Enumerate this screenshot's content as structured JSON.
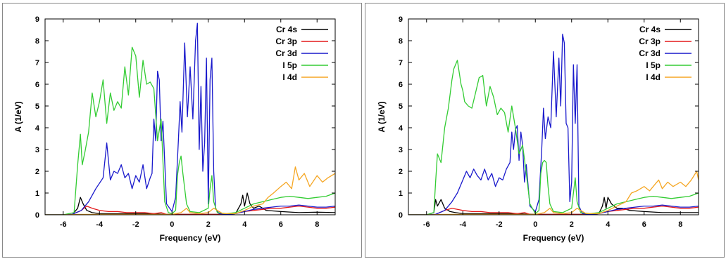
{
  "chart_data": [
    {
      "type": "line",
      "xlabel": "Frequency (eV)",
      "ylabel": "A (1/eV)",
      "xlim": [
        -7,
        9
      ],
      "ylim": [
        0,
        9
      ],
      "xticks": [
        "-6",
        "-4",
        "-2",
        "0",
        "2",
        "4",
        "6",
        "8"
      ],
      "yticks": [
        "0",
        "1",
        "2",
        "3",
        "4",
        "5",
        "6",
        "7",
        "8",
        "9"
      ],
      "grid": false,
      "legend_position": "top-right",
      "series": [
        {
          "name": "Cr 4s",
          "color": "#000000",
          "x": [
            -7,
            -6,
            -5.5,
            -5.2,
            -5.05,
            -4.9,
            -4.7,
            -4.4,
            -4,
            -3,
            -2,
            -1,
            -0.5,
            0,
            0.5,
            1,
            1.5,
            2,
            2.5,
            3,
            3.5,
            3.8,
            3.9,
            4.0,
            4.15,
            4.3,
            4.5,
            4.8,
            5.2,
            6,
            7,
            8,
            9
          ],
          "y": [
            0,
            0,
            0,
            0.3,
            0.8,
            0.5,
            0.2,
            0.1,
            0.05,
            0.05,
            0.05,
            0.05,
            0.03,
            0.02,
            0.02,
            0.02,
            0.02,
            0.02,
            0.02,
            0.02,
            0.05,
            0.5,
            0.9,
            0.4,
            1.0,
            0.5,
            0.3,
            0.4,
            0.2,
            0.15,
            0.1,
            0.12,
            0.1
          ]
        },
        {
          "name": "Cr 3p",
          "color": "#e41a1c",
          "x": [
            -7,
            -6,
            -5.5,
            -5.0,
            -4.7,
            -4.4,
            -4.0,
            -3.5,
            -3,
            -2.5,
            -2,
            -1.5,
            -1,
            -0.6,
            -0.3,
            0,
            0.5,
            1,
            1.5,
            2,
            2.5,
            3,
            3.5,
            4,
            4.5,
            5,
            5.5,
            6,
            6.5,
            7,
            7.5,
            8,
            8.5,
            9
          ],
          "y": [
            0,
            0,
            0.02,
            0.2,
            0.4,
            0.3,
            0.2,
            0.15,
            0.15,
            0.1,
            0.1,
            0.1,
            0.05,
            0.1,
            0.02,
            0.01,
            0.02,
            0.02,
            0.02,
            0.02,
            0.02,
            0.02,
            0.05,
            0.15,
            0.2,
            0.25,
            0.3,
            0.3,
            0.35,
            0.4,
            0.35,
            0.3,
            0.3,
            0.35
          ]
        },
        {
          "name": "Cr 3d",
          "color": "#1a1acc",
          "x": [
            -7,
            -6,
            -5.5,
            -5.0,
            -4.6,
            -4.2,
            -3.8,
            -3.6,
            -3.4,
            -3.2,
            -3.0,
            -2.8,
            -2.6,
            -2.4,
            -2.2,
            -2.0,
            -1.8,
            -1.6,
            -1.4,
            -1.2,
            -1.1,
            -1.0,
            -0.9,
            -0.8,
            -0.7,
            -0.6,
            -0.5,
            -0.3,
            0,
            0.2,
            0.35,
            0.45,
            0.55,
            0.7,
            0.85,
            1.0,
            1.15,
            1.3,
            1.4,
            1.5,
            1.6,
            1.7,
            1.8,
            1.9,
            2.0,
            2.1,
            2.2,
            2.3,
            2.4,
            2.6,
            3.0,
            3.5,
            4,
            4.5,
            5,
            5.5,
            6,
            6.5,
            7,
            7.5,
            8,
            8.5,
            9
          ],
          "y": [
            0,
            0,
            0.02,
            0.2,
            0.6,
            1.2,
            1.7,
            3.3,
            1.6,
            2.0,
            1.9,
            2.3,
            1.7,
            1.9,
            1.2,
            1.8,
            1.5,
            2.3,
            1.2,
            1.7,
            1.9,
            4.4,
            3.4,
            6.6,
            6.2,
            3.4,
            4.3,
            0.5,
            0.15,
            0.8,
            3.4,
            5.2,
            3.8,
            7.9,
            4.5,
            6.8,
            4.4,
            8.0,
            8.8,
            3.0,
            5.9,
            2.0,
            3.3,
            7.2,
            0.5,
            6.2,
            7.2,
            2.0,
            0.3,
            0.05,
            0.02,
            0.05,
            0.15,
            0.25,
            0.3,
            0.35,
            0.4,
            0.4,
            0.45,
            0.4,
            0.35,
            0.35,
            0.4
          ]
        },
        {
          "name": "I 5p",
          "color": "#33cc33",
          "x": [
            -7,
            -6,
            -5.4,
            -5.2,
            -5.05,
            -4.95,
            -4.8,
            -4.6,
            -4.4,
            -4.2,
            -4.0,
            -3.8,
            -3.6,
            -3.4,
            -3.2,
            -3.0,
            -2.8,
            -2.6,
            -2.4,
            -2.2,
            -2.0,
            -1.8,
            -1.6,
            -1.4,
            -1.2,
            -1.0,
            -0.8,
            -0.6,
            -0.4,
            -0.2,
            0,
            0.2,
            0.3,
            0.4,
            0.5,
            0.6,
            0.7,
            0.8,
            1.0,
            1.5,
            2.0,
            2.1,
            2.2,
            2.3,
            2.5,
            3,
            3.5,
            4,
            4.5,
            5,
            5.5,
            6,
            6.5,
            7,
            7.5,
            8,
            8.5,
            9
          ],
          "y": [
            0,
            0,
            0.1,
            2.3,
            3.7,
            2.3,
            2.9,
            3.8,
            5.6,
            4.5,
            5.2,
            6.2,
            4.2,
            5.6,
            4.8,
            5.2,
            4.9,
            6.8,
            5.5,
            7.7,
            7.3,
            5.4,
            7.1,
            6.0,
            6.1,
            5.8,
            3.4,
            4.4,
            0.6,
            0.1,
            0.05,
            0.2,
            1.8,
            2.4,
            2.7,
            1.9,
            1.2,
            0.5,
            0.15,
            0.1,
            0.3,
            1.2,
            1.8,
            0.6,
            0.1,
            0.05,
            0.1,
            0.3,
            0.5,
            0.6,
            0.7,
            0.8,
            0.85,
            0.8,
            0.75,
            0.8,
            0.85,
            1.0
          ]
        },
        {
          "name": "I 4d",
          "color": "#f5a623",
          "x": [
            -7,
            -6,
            -5,
            -4,
            -3,
            -2,
            -1,
            -0.5,
            0,
            0.5,
            0.8,
            1.0,
            1.5,
            2.0,
            2.3,
            2.8,
            3.5,
            4,
            4.5,
            5,
            5.3,
            5.6,
            6,
            6.3,
            6.6,
            6.8,
            7,
            7.3,
            7.6,
            8,
            8.3,
            8.6,
            9
          ],
          "y": [
            0,
            0,
            0.02,
            0.02,
            0.02,
            0.02,
            0.02,
            0.02,
            0.02,
            0.1,
            0.3,
            0.1,
            0.05,
            0.1,
            0.3,
            0.05,
            0.05,
            0.2,
            0.4,
            0.5,
            0.8,
            1.0,
            1.3,
            1.5,
            1.2,
            2.2,
            1.6,
            1.9,
            1.3,
            1.8,
            1.5,
            1.7,
            1.9
          ]
        }
      ]
    },
    {
      "type": "line",
      "xlabel": "Frequency (eV)",
      "ylabel": "A (1/eV)",
      "xlim": [
        -7,
        9
      ],
      "ylim": [
        0,
        9
      ],
      "xticks": [
        "-6",
        "-4",
        "-2",
        "0",
        "2",
        "4",
        "6",
        "8"
      ],
      "yticks": [
        "0",
        "1",
        "2",
        "3",
        "4",
        "5",
        "6",
        "7",
        "8",
        "9"
      ],
      "grid": false,
      "legend_position": "top-right",
      "series": [
        {
          "name": "Cr 4s",
          "color": "#000000",
          "x": [
            -7,
            -6,
            -5.6,
            -5.5,
            -5.4,
            -5.2,
            -5.0,
            -4.7,
            -4.4,
            -4,
            -3,
            -2,
            -1,
            0,
            1,
            2,
            3,
            3.5,
            3.7,
            3.8,
            3.9,
            4.0,
            4.2,
            4.5,
            4.8,
            5.2,
            6,
            7,
            8,
            9
          ],
          "y": [
            0,
            0,
            0.1,
            0.7,
            0.4,
            0.7,
            0.3,
            0.15,
            0.1,
            0.05,
            0.05,
            0.05,
            0.05,
            0.02,
            0.02,
            0.02,
            0.02,
            0.05,
            0.4,
            0.8,
            0.3,
            0.8,
            0.5,
            0.3,
            0.3,
            0.2,
            0.15,
            0.1,
            0.1,
            0.1
          ]
        },
        {
          "name": "Cr 3p",
          "color": "#e41a1c",
          "x": [
            -7,
            -6,
            -5.5,
            -5.0,
            -4.6,
            -4.3,
            -4.0,
            -3.5,
            -3,
            -2.5,
            -2,
            -1.5,
            -1,
            -0.6,
            -0.3,
            0,
            0.5,
            1,
            1.5,
            2,
            2.5,
            3,
            3.5,
            4,
            4.5,
            5,
            5.5,
            6,
            6.5,
            7,
            7.5,
            8,
            8.5,
            9
          ],
          "y": [
            0,
            0,
            0.02,
            0.2,
            0.3,
            0.25,
            0.2,
            0.15,
            0.15,
            0.1,
            0.1,
            0.1,
            0.05,
            0.1,
            0.02,
            0.01,
            0.02,
            0.02,
            0.02,
            0.02,
            0.02,
            0.02,
            0.05,
            0.15,
            0.2,
            0.25,
            0.3,
            0.3,
            0.35,
            0.4,
            0.35,
            0.3,
            0.3,
            0.35
          ]
        },
        {
          "name": "Cr 3d",
          "color": "#1a1acc",
          "x": [
            -7,
            -6,
            -5.5,
            -5.0,
            -4.6,
            -4.3,
            -4.0,
            -3.8,
            -3.6,
            -3.4,
            -3.2,
            -3.0,
            -2.8,
            -2.6,
            -2.4,
            -2.2,
            -2.0,
            -1.8,
            -1.6,
            -1.4,
            -1.3,
            -1.2,
            -1.1,
            -1.0,
            -0.9,
            -0.8,
            -0.7,
            -0.6,
            -0.5,
            -0.3,
            0,
            0.2,
            0.35,
            0.45,
            0.55,
            0.7,
            0.85,
            1.0,
            1.15,
            1.3,
            1.4,
            1.5,
            1.6,
            1.7,
            1.8,
            1.9,
            2.0,
            2.1,
            2.2,
            2.3,
            2.4,
            2.6,
            3.0,
            3.5,
            4,
            4.5,
            5,
            5.5,
            6,
            6.5,
            7,
            7.5,
            8,
            8.5,
            9
          ],
          "y": [
            0,
            0,
            0.02,
            0.2,
            0.6,
            1.0,
            1.6,
            2.0,
            1.7,
            2.1,
            1.8,
            1.6,
            2.1,
            1.6,
            1.9,
            1.3,
            1.7,
            1.6,
            2.1,
            2.4,
            3.8,
            3.0,
            3.9,
            4.1,
            2.5,
            3.8,
            3.2,
            1.5,
            2.3,
            0.4,
            0.15,
            0.7,
            3.0,
            4.9,
            3.5,
            4.5,
            4.0,
            7.5,
            4.5,
            7.2,
            5.0,
            8.3,
            7.9,
            4.2,
            4.0,
            0.6,
            1.5,
            6.9,
            4.2,
            6.9,
            0.4,
            0.05,
            0.02,
            0.05,
            0.15,
            0.25,
            0.3,
            0.35,
            0.4,
            0.4,
            0.45,
            0.4,
            0.35,
            0.35,
            0.4
          ]
        },
        {
          "name": "I 5p",
          "color": "#33cc33",
          "x": [
            -7,
            -6,
            -5.6,
            -5.5,
            -5.4,
            -5.2,
            -5.0,
            -4.8,
            -4.6,
            -4.5,
            -4.3,
            -4.1,
            -4.0,
            -3.9,
            -3.7,
            -3.5,
            -3.3,
            -3.1,
            -2.9,
            -2.7,
            -2.5,
            -2.3,
            -2.1,
            -1.9,
            -1.7,
            -1.5,
            -1.3,
            -1.1,
            -0.9,
            -0.7,
            -0.5,
            -0.3,
            0,
            0.2,
            0.3,
            0.4,
            0.5,
            0.6,
            0.7,
            0.8,
            1.0,
            1.5,
            2.0,
            2.1,
            2.2,
            2.3,
            2.5,
            3,
            3.5,
            4,
            4.5,
            5,
            5.5,
            6,
            6.5,
            7,
            7.5,
            8,
            8.5,
            9
          ],
          "y": [
            0,
            0,
            0.1,
            1.5,
            2.8,
            2.4,
            4.0,
            4.9,
            6.2,
            6.7,
            7.1,
            6.0,
            5.7,
            5.2,
            5.0,
            4.9,
            5.6,
            6.3,
            6.4,
            5.0,
            5.9,
            5.4,
            4.6,
            4.9,
            4.7,
            3.8,
            5.0,
            4.0,
            2.8,
            3.2,
            1.9,
            0.5,
            0.05,
            0.2,
            1.9,
            2.4,
            2.5,
            2.4,
            1.3,
            0.5,
            0.15,
            0.1,
            0.3,
            1.0,
            1.7,
            0.6,
            0.1,
            0.05,
            0.1,
            0.3,
            0.5,
            0.6,
            0.7,
            0.8,
            0.85,
            0.8,
            0.75,
            0.8,
            0.85,
            1.0
          ]
        },
        {
          "name": "I 4d",
          "color": "#f5a623",
          "x": [
            -7,
            -6,
            -5,
            -4,
            -3,
            -2,
            -1,
            -0.5,
            0,
            0.5,
            0.8,
            1.0,
            1.5,
            2.0,
            2.3,
            2.8,
            3.5,
            4,
            4.5,
            5,
            5.3,
            5.6,
            6,
            6.3,
            6.6,
            6.8,
            7,
            7.3,
            7.6,
            8,
            8.3,
            8.6,
            8.9,
            9
          ],
          "y": [
            0,
            0,
            0.02,
            0.02,
            0.02,
            0.02,
            0.02,
            0.02,
            0.02,
            0.1,
            0.3,
            0.1,
            0.05,
            0.1,
            0.3,
            0.05,
            0.05,
            0.2,
            0.4,
            0.6,
            1.0,
            1.1,
            1.3,
            1.1,
            1.4,
            1.6,
            1.2,
            1.5,
            1.3,
            1.5,
            1.3,
            1.6,
            2.0,
            1.6
          ]
        }
      ]
    }
  ]
}
